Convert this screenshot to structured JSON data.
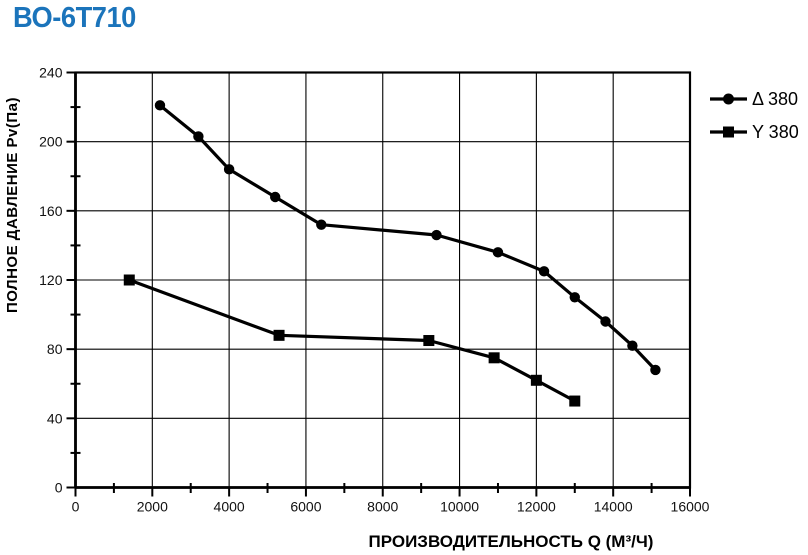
{
  "page": {
    "title": "ВО-6Т710",
    "title_color": "#1b74bb"
  },
  "chart_data": {
    "type": "line",
    "title": "ВО-6Т710",
    "xlabel": "ПРОИЗВОДИТЕЛЬНОСТЬ Q (М³/Ч)",
    "ylabel": "ПОЛНОЕ ДАВЛЕНИЕ Pv(Па)",
    "xlim": [
      0,
      16000
    ],
    "ylim": [
      0,
      240
    ],
    "x_major_step": 2000,
    "x_minor_step": 1000,
    "y_major_step": 40,
    "y_minor_step": 20,
    "x_tick_labels": [
      "0",
      "2000",
      "4000",
      "6000",
      "8000",
      "10000",
      "12000",
      "14000",
      "16000"
    ],
    "y_tick_labels": [
      "0",
      "40",
      "80",
      "120",
      "160",
      "200",
      "240"
    ],
    "grid": true,
    "legend_position": "outside-right-top",
    "line_color": "#000000",
    "series": [
      {
        "name": "Δ 380",
        "marker": "circle",
        "color": "#000000",
        "points": [
          [
            2200,
            221
          ],
          [
            3200,
            203
          ],
          [
            4000,
            184
          ],
          [
            5200,
            168
          ],
          [
            6400,
            152
          ],
          [
            9400,
            146
          ],
          [
            11000,
            136
          ],
          [
            12200,
            125
          ],
          [
            13000,
            110
          ],
          [
            13800,
            96
          ],
          [
            14500,
            82
          ],
          [
            15100,
            68
          ]
        ]
      },
      {
        "name": "Y 380",
        "marker": "square",
        "color": "#000000",
        "points": [
          [
            1400,
            120
          ],
          [
            5300,
            88
          ],
          [
            9200,
            85
          ],
          [
            10900,
            75
          ],
          [
            12000,
            62
          ],
          [
            13000,
            50
          ]
        ]
      }
    ]
  }
}
